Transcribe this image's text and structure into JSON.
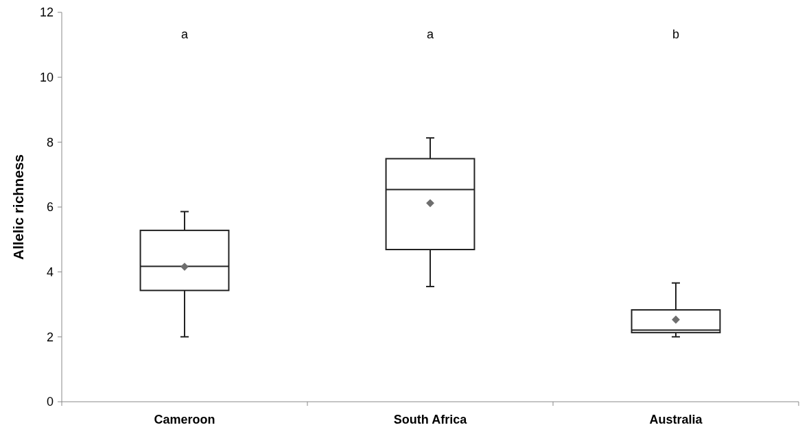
{
  "chart_data": {
    "type": "box",
    "ylabel": "Allelic richness",
    "categories": [
      "Cameroon",
      "South Africa",
      "Australia"
    ],
    "boxes": [
      {
        "low": 2.0,
        "q1": 3.43,
        "median": 4.17,
        "q3": 5.28,
        "high": 5.86,
        "mean": 4.16
      },
      {
        "low": 3.55,
        "q1": 4.69,
        "median": 6.54,
        "q3": 7.49,
        "high": 8.13,
        "mean": 6.12
      },
      {
        "low": 2.0,
        "q1": 2.13,
        "median": 2.21,
        "q3": 2.83,
        "high": 3.66,
        "mean": 2.53
      }
    ],
    "ylim": [
      0,
      12
    ],
    "yticks": [
      0,
      2,
      4,
      6,
      8,
      10,
      12
    ],
    "grid": false,
    "marker": "diamond",
    "annotations": [
      "a",
      "a",
      "b"
    ]
  }
}
